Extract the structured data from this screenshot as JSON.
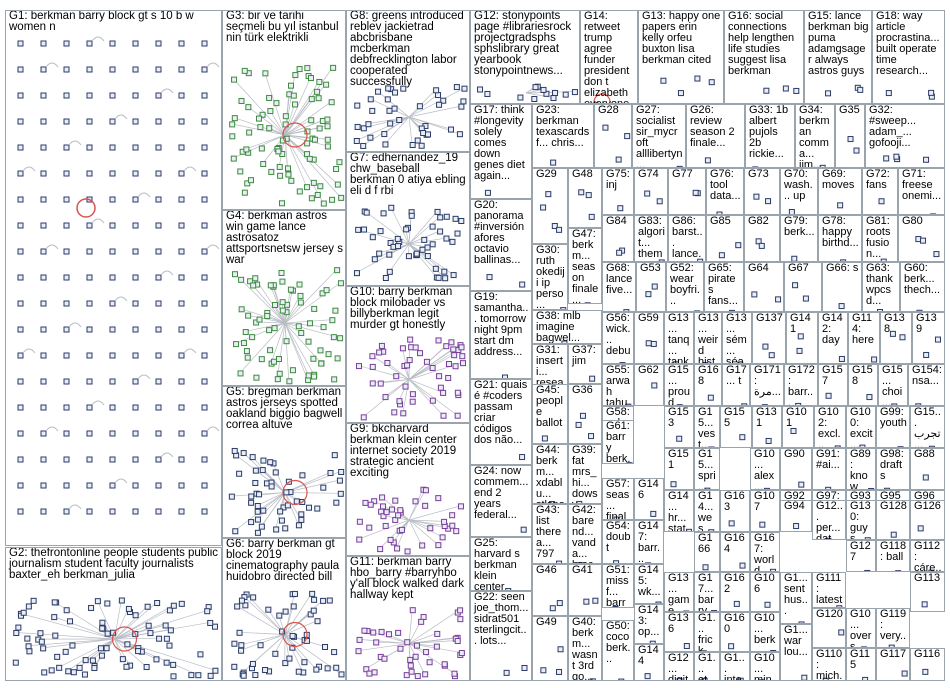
{
  "groups": [
    {
      "id": "G1",
      "text": "G1: berkman barry block gt s 10 b w women n"
    },
    {
      "id": "G2",
      "text": "G2: thefrontonline people students public journalism student faculty journalists baxter_eh berkman_julia"
    },
    {
      "id": "G3",
      "text": "G3: bir ve tarihi seçmeli bu yıl istanbul nin türk elektrikli"
    },
    {
      "id": "G4",
      "text": "G4: berkman astros win game lance astrosatoz attsportsnetsw jersey s war"
    },
    {
      "id": "G5",
      "text": "G5: bregman berkman astros jerseys spotted oakland biggio bagwell correa altuve"
    },
    {
      "id": "G6",
      "text": "G6: barry berkman gt block 2019 cinematography paula huidobro directed bill"
    },
    {
      "id": "G7",
      "text": "G7: edhernandez_19 chw_baseball berkman 0 atiya ebling eli d f rbi"
    },
    {
      "id": "G8",
      "text": "G8: greens introduced reblev jackietrad abcbrisbane mcberkman debfrecklington labor cooperated successfully"
    },
    {
      "id": "G9",
      "text": "G9: bkcharvard berkman klein center internet society 2019 strategic ancient exciting"
    },
    {
      "id": "G10",
      "text": "G10: barry berkman block milobader vs billyberkman legit murder gt honestly"
    },
    {
      "id": "G11",
      "text": "G11: berkman barry hbo_barry #barryhbo y'all block walked dark hallway kept"
    },
    {
      "id": "G12",
      "text": "G12: stonypoints page #librariesrock projectgradsphs sphslibrary great yearbook stonypointnews..."
    },
    {
      "id": "G13",
      "text": "G13: happy one papers erin kelly orfeu buxton lisa berkman cited"
    },
    {
      "id": "G14",
      "text": "G14: retweet trump agree funder president don t elizabeth everyone many"
    },
    {
      "id": "G15",
      "text": "G15: lance berkman big puma adamgsager always astros guys"
    },
    {
      "id": "G16",
      "text": "G16: social connections help lengthen life studies suggest lisa berkman"
    },
    {
      "id": "G17",
      "text": "G17: think #longevity solely comes down genes diet again..."
    },
    {
      "id": "G18",
      "text": "G18: way article procrastina... built operate time research..."
    },
    {
      "id": "G19",
      "text": "G19: samantha... tomorrow night 9pm start dm address..."
    },
    {
      "id": "G20",
      "text": "G20: panorama #inversión afores octavio ballinas..."
    },
    {
      "id": "G21",
      "text": "G21: quais é #coders passam criar códigos dos não..."
    },
    {
      "id": "G22",
      "text": "G22: seen joe_thom... sidrat501 sterlingcit... lots..."
    },
    {
      "id": "G23",
      "text": "G23: berkman texascardsf... chris..."
    },
    {
      "id": "G24",
      "text": "G24: now commem... end 2 years federal..."
    },
    {
      "id": "G25",
      "text": "G25: harvard s berkman klein center hosting..."
    },
    {
      "id": "G26",
      "text": "G26: review season 2 finale..."
    },
    {
      "id": "G27",
      "text": "G27: socialist sir_mycroft alllibertyn..."
    },
    {
      "id": "G28",
      "text": "G28"
    },
    {
      "id": "G29",
      "text": "G29"
    },
    {
      "id": "G30",
      "text": "G30: ruth okediji ip perso..."
    },
    {
      "id": "G31",
      "text": "G31: inserti... resear... harvar... berkm..."
    },
    {
      "id": "G32",
      "text": "G32: #sweep... adam_... gofooji..."
    },
    {
      "id": "G33",
      "text": "G33: 1b albert pujols 2b rickie..."
    },
    {
      "id": "G34",
      "text": "G34: berkman comma... jim..."
    },
    {
      "id": "G35",
      "text": "G35"
    },
    {
      "id": "G36",
      "text": "G36"
    },
    {
      "id": "G37",
      "text": "G37: jim"
    },
    {
      "id": "G38",
      "text": "G38: mlb imagine bagwel..."
    },
    {
      "id": "G39",
      "text": "G39: fat mrs_hi... dowsy... think..."
    },
    {
      "id": "G40",
      "text": "G40: berkm... wasn t 3rd go..."
    },
    {
      "id": "G41",
      "text": "G41"
    },
    {
      "id": "G42",
      "text": "G42: barend... vanda... bracht..."
    },
    {
      "id": "G43",
      "text": "G43: list therea... 797"
    },
    {
      "id": "G44",
      "text": "G44: berkm... xdablu... stlspor..."
    },
    {
      "id": "G45",
      "text": "G45: people ballot"
    },
    {
      "id": "G46",
      "text": "G46"
    },
    {
      "id": "G47",
      "text": "G47: berkm... season finale..."
    },
    {
      "id": "G48",
      "text": "G48"
    },
    {
      "id": "G49",
      "text": "G49"
    },
    {
      "id": "G50",
      "text": "G50: coco berk..."
    },
    {
      "id": "G51",
      "text": "G51: missf... barry..."
    },
    {
      "id": "G52",
      "text": "G52: wear boyfri..."
    },
    {
      "id": "G53",
      "text": "G53"
    },
    {
      "id": "G54",
      "text": "G54: doubt"
    },
    {
      "id": "G55",
      "text": "G55: arwah tahu..."
    },
    {
      "id": "G56",
      "text": "G56: wick... debu..."
    },
    {
      "id": "G57",
      "text": "G57: seas... finale..."
    },
    {
      "id": "G58",
      "text": "G58: çakm... türkiy..."
    },
    {
      "id": "G59",
      "text": "G59"
    },
    {
      "id": "G60",
      "text": "G60: berk... thech..."
    },
    {
      "id": "G61",
      "text": "G61: barry berk... gt..."
    },
    {
      "id": "G62",
      "text": "G62"
    },
    {
      "id": "G63",
      "text": "G63: thank wpcsd..."
    },
    {
      "id": "G64",
      "text": "G64"
    },
    {
      "id": "G65",
      "text": "G65: pirates fans..."
    },
    {
      "id": "G66",
      "text": "G66: s"
    },
    {
      "id": "G67",
      "text": "G67"
    },
    {
      "id": "G68",
      "text": "G68: lance five..."
    },
    {
      "id": "G69",
      "text": "G69: moves"
    },
    {
      "id": "G70",
      "text": "G70: wash... up"
    },
    {
      "id": "G71",
      "text": "G71: freese onemi..."
    },
    {
      "id": "G72",
      "text": "G72: fans"
    },
    {
      "id": "G73",
      "text": "G73"
    },
    {
      "id": "G74",
      "text": "G74"
    },
    {
      "id": "G75",
      "text": "G75: inj"
    },
    {
      "id": "G76",
      "text": "G76: tool data..."
    },
    {
      "id": "G77",
      "text": "G77"
    },
    {
      "id": "G78",
      "text": "G78: happy birthd..."
    },
    {
      "id": "G79",
      "text": "G79: berk..."
    },
    {
      "id": "G80",
      "text": "G80"
    },
    {
      "id": "G81",
      "text": "G81: roots fusion..."
    },
    {
      "id": "G82",
      "text": "G82"
    },
    {
      "id": "G83",
      "text": "G83: algorit... thems..."
    },
    {
      "id": "G84",
      "text": "G84"
    },
    {
      "id": "G85",
      "text": "G85"
    },
    {
      "id": "G86",
      "text": "G86: barst... lance..."
    },
    {
      "id": "G87",
      "text": "G87"
    },
    {
      "id": "G88",
      "text": "G88"
    },
    {
      "id": "G89",
      "text": "G89: know"
    },
    {
      "id": "G90",
      "text": "G90"
    },
    {
      "id": "G91",
      "text": "G91: #ai..."
    },
    {
      "id": "G92",
      "text": "G92"
    },
    {
      "id": "G93",
      "text": "G93"
    },
    {
      "id": "G94",
      "text": "G94"
    },
    {
      "id": "G95",
      "text": "G95"
    },
    {
      "id": "G96",
      "text": "G96"
    },
    {
      "id": "G97",
      "text": "G97: berk..."
    },
    {
      "id": "G98",
      "text": "G98: drafts"
    },
    {
      "id": "G99",
      "text": "G99: youth"
    },
    {
      "id": "G100",
      "text": "G100: excit..."
    },
    {
      "id": "G101",
      "text": "G101"
    },
    {
      "id": "G102",
      "text": "G102: excl..."
    },
    {
      "id": "G103",
      "text": "G10... alex... berk..."
    },
    {
      "id": "G104",
      "text": "G10... min... boa..."
    },
    {
      "id": "G105",
      "text": "G1... war lou..."
    },
    {
      "id": "G106",
      "text": "G106"
    },
    {
      "id": "G107",
      "text": "G107"
    },
    {
      "id": "G108",
      "text": "G10... berk... marx"
    },
    {
      "id": "G109",
      "text": "G10... over s"
    },
    {
      "id": "G110",
      "text": "G110: mich..."
    },
    {
      "id": "G111",
      "text": "G111: latest..."
    },
    {
      "id": "G112",
      "text": "G112: cáre..."
    },
    {
      "id": "G113",
      "text": "G113"
    },
    {
      "id": "G114",
      "text": "G114: here"
    },
    {
      "id": "G115",
      "text": "G115"
    },
    {
      "id": "G116",
      "text": "G116"
    },
    {
      "id": "G117",
      "text": "G117"
    },
    {
      "id": "G118",
      "text": "G118: ball"
    },
    {
      "id": "G119",
      "text": "G119: very..."
    },
    {
      "id": "G120",
      "text": "G120"
    },
    {
      "id": "G121",
      "text": "G1... sent hus..."
    },
    {
      "id": "G122",
      "text": "G12... per... dat..."
    },
    {
      "id": "G123",
      "text": "G1... frick steel"
    },
    {
      "id": "G124",
      "text": "G1... inte... barr..."
    },
    {
      "id": "G125",
      "text": "G12... digit..."
    },
    {
      "id": "G126",
      "text": "G126"
    },
    {
      "id": "G127",
      "text": "G127"
    },
    {
      "id": "G128",
      "text": "G128"
    },
    {
      "id": "G129",
      "text": "G1... et..."
    },
    {
      "id": "G130",
      "text": "G130: guys..."
    },
    {
      "id": "G131",
      "text": "G131"
    },
    {
      "id": "G132",
      "text": "G13... weird hist..."
    },
    {
      "id": "G133",
      "text": "G13... game sla..."
    },
    {
      "id": "G134",
      "text": "G13... op..."
    },
    {
      "id": "G135",
      "text": "G13... tanq... tank..."
    },
    {
      "id": "G136",
      "text": "G136"
    },
    {
      "id": "G137",
      "text": "G137"
    },
    {
      "id": "G138",
      "text": "G138"
    },
    {
      "id": "G139",
      "text": "G139"
    },
    {
      "id": "G140",
      "text": "G13... sém... séa..."
    },
    {
      "id": "G141",
      "text": "G141"
    },
    {
      "id": "G142",
      "text": "G142: day"
    },
    {
      "id": "G143",
      "text": "G143: op..."
    },
    {
      "id": "G144",
      "text": "G144"
    },
    {
      "id": "G145",
      "text": "G145: wk..."
    },
    {
      "id": "G146",
      "text": "G146"
    },
    {
      "id": "G147",
      "text": "G147: barr..."
    },
    {
      "id": "G148",
      "text": "G14... hr... stat..."
    },
    {
      "id": "G149",
      "text": "G14... wes"
    },
    {
      "id": "G150",
      "text": "G15... spri..."
    },
    {
      "id": "G151",
      "text": "G151"
    },
    {
      "id": "G152",
      "text": "G15... vest... gmy..."
    },
    {
      "id": "G153",
      "text": "G153"
    },
    {
      "id": "G154",
      "text": "G154: nsa..."
    },
    {
      "id": "G155",
      "text": "G155"
    },
    {
      "id": "G156",
      "text": "G15... proud ann..."
    },
    {
      "id": "G157",
      "text": "G157"
    },
    {
      "id": "G158",
      "text": "G158"
    },
    {
      "id": "G159",
      "text": "G15... choi..."
    },
    {
      "id": "G160",
      "text": "G160"
    },
    {
      "id": "G161",
      "text": "G16... min... boa..."
    },
    {
      "id": "G162",
      "text": "G162"
    },
    {
      "id": "G163",
      "text": "G163"
    },
    {
      "id": "G164",
      "text": "G164"
    },
    {
      "id": "G165",
      "text": "G165"
    },
    {
      "id": "G166",
      "text": "G166"
    },
    {
      "id": "G167",
      "text": "G167: world play..."
    },
    {
      "id": "G168",
      "text": "G168"
    },
    {
      "id": "G169",
      "text": "G169"
    },
    {
      "id": "G170",
      "text": "G17... barry berk..."
    },
    {
      "id": "G171",
      "text": "G171"
    },
    {
      "id": "G172",
      "text": "G172: barr..."
    },
    {
      "id": "G173",
      "text": "G17... t"
    },
    {
      "id": "G174",
      "text": "G15... تجرب..."
    },
    {
      "id": "G175",
      "text": "G171: مرة..."
    }
  ],
  "colors": {
    "border": "#9aa4ad",
    "node_fill": "#e8eef6",
    "node_stroke": "#2b3a67",
    "edge": "#b8bcc4",
    "selfloop": "#d9534f",
    "green_node": "#3d8b3d",
    "purple_node": "#7a3d9a"
  }
}
